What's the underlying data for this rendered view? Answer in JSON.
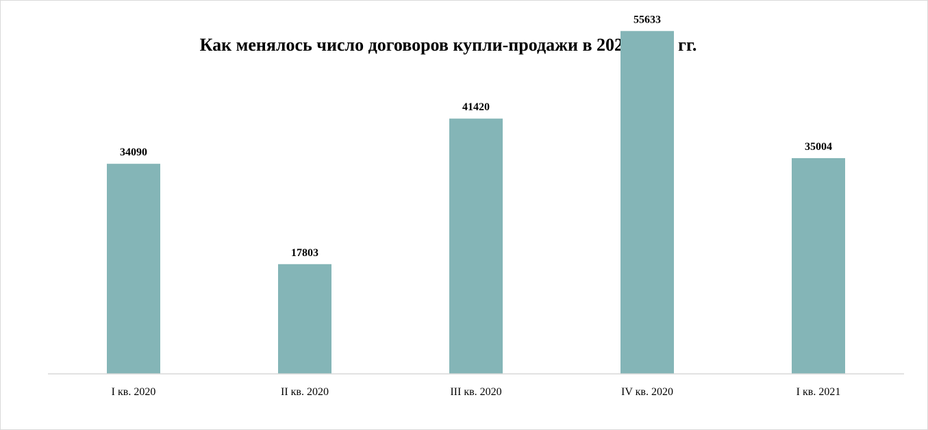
{
  "chart_data": {
    "type": "bar",
    "title": "Как менялось число договоров купли-продажи в 2020-2021 гг.",
    "categories": [
      "I кв. 2020",
      "II кв. 2020",
      "III кв. 2020",
      "IV кв. 2020",
      "I кв. 2021"
    ],
    "values": [
      34090,
      17803,
      41420,
      55633,
      35004
    ],
    "data_labels": [
      "34090",
      "17803",
      "41420",
      "55633",
      "35004"
    ],
    "xlabel": "",
    "ylabel": "",
    "ylim": [
      0,
      60000
    ],
    "grid": false,
    "legend": "none",
    "bar_color": "#84b5b7",
    "axis_color": "#d9d9d9"
  }
}
